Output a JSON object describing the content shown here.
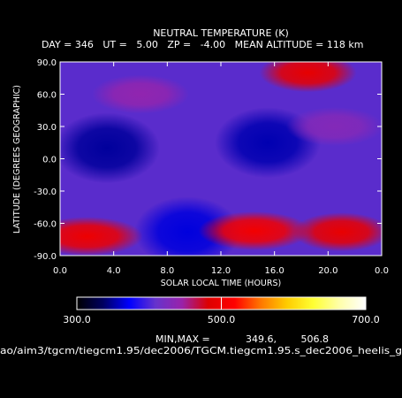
{
  "chart_data": {
    "type": "heatmap",
    "title": "NEUTRAL TEMPERATURE (K)",
    "subtitle": "DAY = 346   UT =   5.00   ZP =   -4.00   MEAN ALTITUDE = 118 km",
    "xlabel": "SOLAR LOCAL TIME (HOURS)",
    "ylabel": "LATITUDE (DEGREES GEOGRAPHIC)",
    "xlim": [
      0,
      24
    ],
    "ylim": [
      -90,
      90
    ],
    "x_ticks": [
      "0.0",
      "4.0",
      "8.0",
      "12.0",
      "16.0",
      "20.0",
      "0.0"
    ],
    "y_ticks": [
      "90.0",
      "60.0",
      "30.0",
      "0.0",
      "-30.0",
      "-60.0",
      "-90.0"
    ],
    "colorbar": {
      "min": 300,
      "max": 700,
      "tick_labels": [
        "300.0",
        "500.0",
        "700.0"
      ],
      "colors": [
        "#000000",
        "#000060",
        "#0000ff",
        "#6633cc",
        "#9922aa",
        "#dd0000",
        "#ff0000",
        "#ff7700",
        "#ffcc00",
        "#ffff33",
        "#ffffaa",
        "#ffffff"
      ]
    },
    "min_max_label": "MIN,MAX =",
    "min_value": "349.6,",
    "max_value": "506.8",
    "minmax_numeric": [
      349.6,
      506.8
    ],
    "features": [
      {
        "kind": "cold",
        "lt": 3.5,
        "lat": 10,
        "value": 350
      },
      {
        "kind": "cold",
        "lt": 15.5,
        "lat": 15,
        "value": 355
      },
      {
        "kind": "cold",
        "lt": 9.5,
        "lat": -68,
        "value": 365
      },
      {
        "kind": "warm",
        "lt": 14.5,
        "lat": -67,
        "value": 505
      },
      {
        "kind": "warm",
        "lt": 2.0,
        "lat": -72,
        "value": 500
      },
      {
        "kind": "warm",
        "lt": 21.0,
        "lat": -68,
        "value": 495
      },
      {
        "kind": "warm",
        "lt": 18.5,
        "lat": 80,
        "value": 492
      },
      {
        "kind": "warm",
        "lt": 6.0,
        "lat": 60,
        "value": 440
      },
      {
        "kind": "warm",
        "lt": 20.5,
        "lat": 30,
        "value": 430
      }
    ]
  },
  "footer_path": "ao/aim3/tgcm/tiegcm1.95/dec2006/TGCM.tiegcm1.95.s_dec2006_heelis_g"
}
